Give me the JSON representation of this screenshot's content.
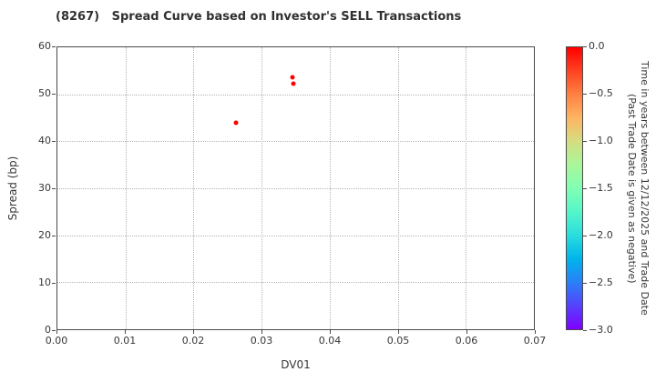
{
  "title": "(8267)   Spread Curve based on Investor's SELL Transactions",
  "colors": {
    "marker": "#ff0000",
    "text": "#363636",
    "spine": "#4a4a4a",
    "grid": "#b3b3b3"
  },
  "chart_data": {
    "type": "scatter",
    "title": "(8267)   Spread Curve based on Investor's SELL Transactions",
    "xlabel": "DV01",
    "ylabel": "Spread (bp)",
    "xlim": [
      0.0,
      0.07
    ],
    "ylim": [
      0,
      60
    ],
    "x_tick_labels": [
      "0.00",
      "0.01",
      "0.02",
      "0.03",
      "0.04",
      "0.05",
      "0.06",
      "0.07"
    ],
    "y_tick_labels": [
      "0",
      "10",
      "20",
      "30",
      "40",
      "50",
      "60"
    ],
    "grid": "dotted",
    "points": [
      {
        "x": 0.0263,
        "y": 44.0,
        "time_years": 0.0
      },
      {
        "x": 0.0345,
        "y": 53.6,
        "time_years": 0.0
      },
      {
        "x": 0.0347,
        "y": 52.2,
        "time_years": 0.0
      }
    ],
    "colorbar": {
      "label_line1": "Time in years between 12/12/2025 and Trade Date",
      "label_line2": "(Past Trade Date is given as negative)",
      "tick_labels": [
        "0.0",
        "−0.5",
        "−1.0",
        "−1.5",
        "−2.0",
        "−2.5",
        "−3.0"
      ],
      "vmax": 0.0,
      "vmin": -3.0,
      "colormap": "rainbow",
      "gradient": [
        {
          "pos": 0,
          "color": "#ff0000"
        },
        {
          "pos": 8.33,
          "color": "#ff4221"
        },
        {
          "pos": 16.67,
          "color": "#ff8042"
        },
        {
          "pos": 25,
          "color": "#ffb462"
        },
        {
          "pos": 33.33,
          "color": "#d5dd80"
        },
        {
          "pos": 41.67,
          "color": "#aaf69b"
        },
        {
          "pos": 50,
          "color": "#80ffb4"
        },
        {
          "pos": 58.33,
          "color": "#55f6ca"
        },
        {
          "pos": 66.67,
          "color": "#2adddd"
        },
        {
          "pos": 75,
          "color": "#00b4ec"
        },
        {
          "pos": 83.33,
          "color": "#2a80f6"
        },
        {
          "pos": 91.67,
          "color": "#5542fd"
        },
        {
          "pos": 100,
          "color": "#8000ff"
        }
      ]
    }
  }
}
